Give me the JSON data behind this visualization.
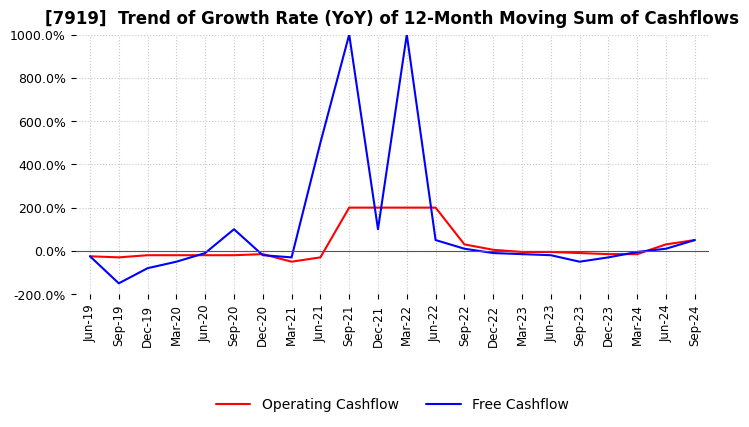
{
  "title": "[7919]  Trend of Growth Rate (YoY) of 12-Month Moving Sum of Cashflows",
  "title_fontsize": 12,
  "ylim": [
    -200,
    1000
  ],
  "yticks": [
    -200,
    0,
    200,
    400,
    600,
    800,
    1000
  ],
  "ytick_labels": [
    "-200.0%",
    "0.0%",
    "200.0%",
    "400.0%",
    "600.0%",
    "800.0%",
    "1000.0%"
  ],
  "legend_labels": [
    "Operating Cashflow",
    "Free Cashflow"
  ],
  "legend_colors": [
    "red",
    "blue"
  ],
  "x_labels": [
    "Jun-19",
    "Sep-19",
    "Dec-19",
    "Mar-20",
    "Jun-20",
    "Sep-20",
    "Dec-20",
    "Mar-21",
    "Jun-21",
    "Sep-21",
    "Dec-21",
    "Mar-22",
    "Jun-22",
    "Sep-22",
    "Dec-22",
    "Mar-23",
    "Jun-23",
    "Sep-23",
    "Dec-23",
    "Mar-24",
    "Jun-24",
    "Sep-24"
  ],
  "operating_cashflow_y": [
    -25,
    -30,
    -20,
    -20,
    -20,
    -20,
    -15,
    -50,
    -30,
    200,
    200,
    200,
    200,
    30,
    5,
    -5,
    -5,
    -10,
    -15,
    -15,
    30,
    50
  ],
  "free_cashflow_y": [
    -25,
    -150,
    -80,
    -50,
    -10,
    100,
    -20,
    -30,
    500,
    1000,
    100,
    1000,
    50,
    10,
    -10,
    -15,
    -20,
    -50,
    -30,
    -5,
    10,
    50
  ],
  "background_color": "#ffffff",
  "grid_color": "#c8c8c8",
  "grid_linestyle": "dotted"
}
